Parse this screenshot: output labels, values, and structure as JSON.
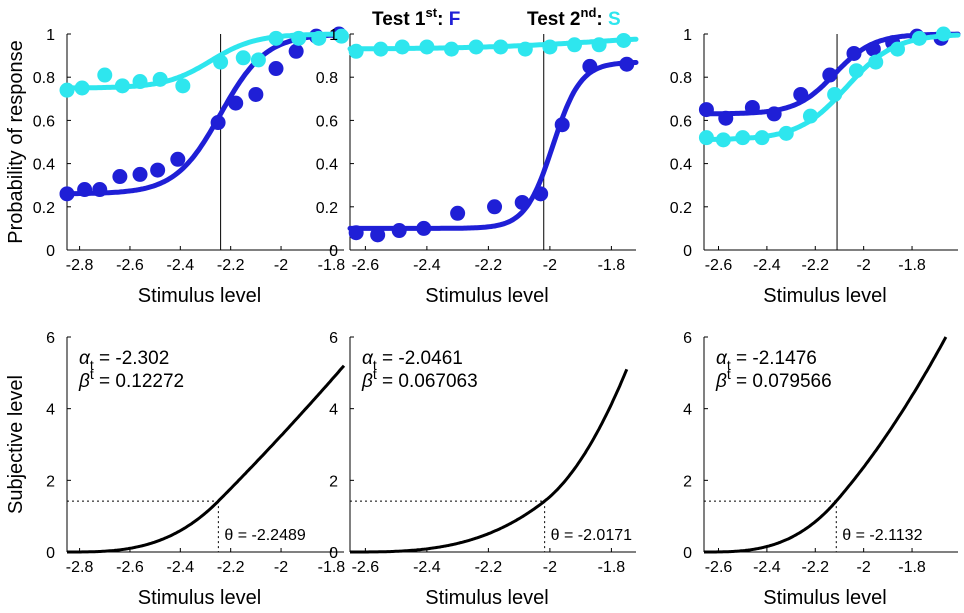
{
  "colors": {
    "first": "#1f1fd6",
    "second": "#2ee6ee",
    "axis": "#000000"
  },
  "title": {
    "first_prefix": "Test 1",
    "first_sup": "st",
    "first_sep": ": ",
    "first_letter": "F",
    "second_prefix": "Test 2",
    "second_sup": "nd",
    "second_sep": ": ",
    "second_letter": "S"
  },
  "chart_data": [
    {
      "panel": "top-left",
      "type": "line+scatter",
      "xlabel": "Stimulus level",
      "ylabel": "Probability of response",
      "xlim": [
        -2.85,
        -1.75
      ],
      "ylim": [
        0,
        1
      ],
      "xticks": [
        -2.8,
        -2.6,
        -2.4,
        -2.2,
        -2,
        -1.8
      ],
      "xtick_labels": [
        "-2.8",
        "-2.6",
        "-2.4",
        "-2.2",
        "-2",
        "-1.8"
      ],
      "yticks": [
        0,
        0.2,
        0.4,
        0.6,
        0.8,
        1
      ],
      "ytick_labels": [
        "0",
        "0.2",
        "0.4",
        "0.6",
        "0.8",
        "1"
      ],
      "vline": -2.24,
      "series": [
        {
          "name": "Test 1st: F",
          "color": "#1f1fd6",
          "points": [
            [
              -2.85,
              0.26
            ],
            [
              -2.78,
              0.28
            ],
            [
              -2.72,
              0.28
            ],
            [
              -2.64,
              0.34
            ],
            [
              -2.56,
              0.35
            ],
            [
              -2.49,
              0.37
            ],
            [
              -2.41,
              0.42
            ],
            [
              -2.25,
              0.59
            ],
            [
              -2.18,
              0.68
            ],
            [
              -2.1,
              0.72
            ],
            [
              -2.02,
              0.84
            ],
            [
              -1.94,
              0.92
            ],
            [
              -1.86,
              0.99
            ],
            [
              -1.77,
              1.0
            ]
          ],
          "curve": {
            "gamma": 0.26,
            "lambda": 0.0,
            "alpha": -2.24,
            "beta": 0.09
          }
        },
        {
          "name": "Test 2nd: S",
          "color": "#2ee6ee",
          "points": [
            [
              -2.85,
              0.74
            ],
            [
              -2.79,
              0.75
            ],
            [
              -2.7,
              0.81
            ],
            [
              -2.63,
              0.76
            ],
            [
              -2.56,
              0.78
            ],
            [
              -2.48,
              0.79
            ],
            [
              -2.39,
              0.76
            ],
            [
              -2.24,
              0.87
            ],
            [
              -2.15,
              0.89
            ],
            [
              -2.09,
              0.88
            ],
            [
              -2.02,
              0.98
            ],
            [
              -1.93,
              0.98
            ],
            [
              -1.85,
              0.98
            ],
            [
              -1.76,
              0.99
            ]
          ],
          "curve": {
            "gamma": 0.75,
            "lambda": 0.0,
            "alpha": -2.28,
            "beta": 0.09
          }
        }
      ]
    },
    {
      "panel": "top-middle",
      "type": "line+scatter",
      "xlabel": "Stimulus level",
      "xlim": [
        -2.65,
        -1.72
      ],
      "ylim": [
        0,
        1
      ],
      "xticks": [
        -2.6,
        -2.4,
        -2.2,
        -2,
        -1.8
      ],
      "xtick_labels": [
        "-2.6",
        "-2.4",
        "-2.2",
        "-2",
        "-1.8"
      ],
      "yticks": [
        0,
        0.2,
        0.4,
        0.6,
        0.8,
        1
      ],
      "ytick_labels": [
        "0",
        "0.2",
        "0.4",
        "0.6",
        "0.8",
        "1"
      ],
      "vline": -2.02,
      "series": [
        {
          "name": "Test 1st: F",
          "color": "#1f1fd6",
          "points": [
            [
              -2.63,
              0.08
            ],
            [
              -2.56,
              0.07
            ],
            [
              -2.49,
              0.09
            ],
            [
              -2.41,
              0.1
            ],
            [
              -2.3,
              0.17
            ],
            [
              -2.18,
              0.2
            ],
            [
              -2.09,
              0.22
            ],
            [
              -2.03,
              0.26
            ],
            [
              -1.96,
              0.58
            ],
            [
              -1.87,
              0.85
            ],
            [
              -1.75,
              0.86
            ]
          ],
          "curve": {
            "gamma": 0.1,
            "lambda": 0.13,
            "alpha": -1.99,
            "beta": 0.045
          }
        },
        {
          "name": "Test 2nd: S",
          "color": "#2ee6ee",
          "points": [
            [
              -2.63,
              0.92
            ],
            [
              -2.55,
              0.93
            ],
            [
              -2.48,
              0.94
            ],
            [
              -2.4,
              0.94
            ],
            [
              -2.32,
              0.93
            ],
            [
              -2.24,
              0.94
            ],
            [
              -2.16,
              0.94
            ],
            [
              -2.08,
              0.93
            ],
            [
              -2.0,
              0.94
            ],
            [
              -1.92,
              0.95
            ],
            [
              -1.84,
              0.95
            ],
            [
              -1.76,
              0.97
            ]
          ],
          "curve": {
            "gamma": 0.93,
            "lambda": 0.0,
            "alpha": -1.85,
            "beta": 0.2
          }
        }
      ]
    },
    {
      "panel": "top-right",
      "type": "line+scatter",
      "xlabel": "Stimulus level",
      "xlim": [
        -2.66,
        -1.61
      ],
      "ylim": [
        0,
        1
      ],
      "xticks": [
        -2.6,
        -2.4,
        -2.2,
        -2,
        -1.8
      ],
      "xtick_labels": [
        "-2.6",
        "-2.4",
        "-2.2",
        "-2",
        "-1.8"
      ],
      "yticks": [
        0,
        0.2,
        0.4,
        0.6,
        0.8,
        1
      ],
      "ytick_labels": [
        "0",
        "0.2",
        "0.4",
        "0.6",
        "0.8",
        "1"
      ],
      "vline": -2.11,
      "series": [
        {
          "name": "Test 1st: F",
          "color": "#1f1fd6",
          "points": [
            [
              -2.65,
              0.65
            ],
            [
              -2.57,
              0.61
            ],
            [
              -2.46,
              0.66
            ],
            [
              -2.37,
              0.63
            ],
            [
              -2.26,
              0.72
            ],
            [
              -2.14,
              0.81
            ],
            [
              -2.04,
              0.91
            ],
            [
              -1.96,
              0.93
            ],
            [
              -1.88,
              0.96
            ],
            [
              -1.78,
              0.99
            ],
            [
              -1.68,
              0.98
            ]
          ],
          "curve": {
            "gamma": 0.63,
            "lambda": 0.0,
            "alpha": -2.12,
            "beta": 0.08
          }
        },
        {
          "name": "Test 2nd: S",
          "color": "#2ee6ee",
          "points": [
            [
              -2.65,
              0.52
            ],
            [
              -2.58,
              0.51
            ],
            [
              -2.5,
              0.52
            ],
            [
              -2.42,
              0.52
            ],
            [
              -2.32,
              0.54
            ],
            [
              -2.22,
              0.62
            ],
            [
              -2.12,
              0.72
            ],
            [
              -2.03,
              0.83
            ],
            [
              -1.95,
              0.87
            ],
            [
              -1.86,
              0.93
            ],
            [
              -1.77,
              0.98
            ],
            [
              -1.67,
              1.0
            ]
          ],
          "curve": {
            "gamma": 0.51,
            "lambda": 0.0,
            "alpha": -2.07,
            "beta": 0.1
          }
        }
      ]
    },
    {
      "panel": "bottom-left",
      "type": "line",
      "xlabel": "Stimulus level",
      "ylabel": "Subjective level",
      "xlim": [
        -2.85,
        -1.75
      ],
      "ylim": [
        0,
        6
      ],
      "xticks": [
        -2.8,
        -2.6,
        -2.4,
        -2.2,
        -2,
        -1.8
      ],
      "xtick_labels": [
        "-2.8",
        "-2.6",
        "-2.4",
        "-2.2",
        "-2",
        "-1.8"
      ],
      "yticks": [
        0,
        2,
        4,
        6
      ],
      "ytick_labels": [
        "0",
        "2",
        "4",
        "6"
      ],
      "alpha_label": "α",
      "alpha_sub": "t",
      "alpha_value": " = -2.302",
      "beta_label": "β",
      "beta_sub": "t",
      "beta_value": " = 0.12272",
      "theta_text": "θ = -2.2489",
      "theta": -2.2489,
      "threshold_y": 1.42,
      "curve": {
        "alpha": -2.302,
        "beta": 0.12272,
        "x_end": -1.75,
        "y_end": 5.2,
        "x0": -2.85
      }
    },
    {
      "panel": "bottom-middle",
      "type": "line",
      "xlabel": "Stimulus level",
      "xlim": [
        -2.65,
        -1.72
      ],
      "ylim": [
        0,
        6
      ],
      "xticks": [
        -2.6,
        -2.4,
        -2.2,
        -2,
        -1.8
      ],
      "xtick_labels": [
        "-2.6",
        "-2.4",
        "-2.2",
        "-2",
        "-1.8"
      ],
      "yticks": [
        0,
        2,
        4,
        6
      ],
      "ytick_labels": [
        "0",
        "2",
        "4",
        "6"
      ],
      "alpha_label": "α",
      "alpha_sub": "t",
      "alpha_value": " = -2.0461",
      "beta_label": "β",
      "beta_sub": "t",
      "beta_value": " = 0.067063",
      "theta_text": "θ = -2.0171",
      "theta": -2.0171,
      "threshold_y": 1.42,
      "curve": {
        "alpha": -2.0461,
        "beta": 0.067063,
        "x_end": -1.75,
        "y_end": 5.1,
        "x0": -2.65
      }
    },
    {
      "panel": "bottom-right",
      "type": "line",
      "xlabel": "Stimulus level",
      "xlim": [
        -2.66,
        -1.61
      ],
      "ylim": [
        0,
        6
      ],
      "xticks": [
        -2.6,
        -2.4,
        -2.2,
        -2,
        -1.8
      ],
      "xtick_labels": [
        "-2.6",
        "-2.4",
        "-2.2",
        "-2",
        "-1.8"
      ],
      "yticks": [
        0,
        2,
        4,
        6
      ],
      "ytick_labels": [
        "0",
        "2",
        "4",
        "6"
      ],
      "alpha_label": "α",
      "alpha_sub": "t",
      "alpha_value": " = -2.1476",
      "beta_label": "β",
      "beta_sub": "t",
      "beta_value": " = 0.079566",
      "theta_text": "θ = -2.1132",
      "theta": -2.1132,
      "threshold_y": 1.42,
      "curve": {
        "alpha": -2.1476,
        "beta": 0.079566,
        "x_end": -1.66,
        "y_end": 6.0,
        "x0": -2.66
      }
    }
  ]
}
